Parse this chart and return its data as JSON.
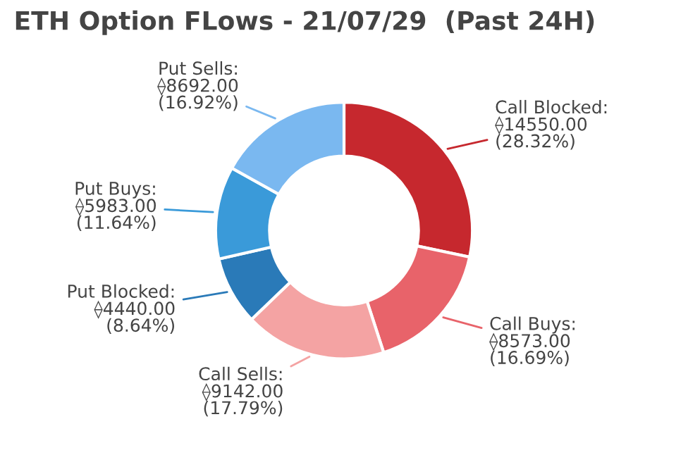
{
  "chart_data": {
    "type": "donut",
    "title": "ETH Option FLows - 21/07/29  (Past 24H)",
    "categories": [
      "Call Blocked",
      "Call Buys",
      "Call Sells",
      "Put Blocked",
      "Put Buys",
      "Put Sells"
    ],
    "values": [
      14550.0,
      8573.0,
      9142.0,
      4440.0,
      5983.0,
      8692.0
    ],
    "value_labels": [
      ":\n⟠14550.00\n(28.32%)",
      ":\n⟠8573.00\n(16.69%)",
      ":\n⟠9142.00\n(17.79%)",
      ":\n⟠4440.00\n(8.64%)",
      ":\n⟠5983.00\n(11.64%)",
      ":\n⟠8692.00\n(16.92%)"
    ],
    "colors": [
      "#c6282e",
      "#e8636a",
      "#f4a3a3",
      "#2a7ab8",
      "#3a9ad9",
      "#7ab8f0"
    ]
  }
}
